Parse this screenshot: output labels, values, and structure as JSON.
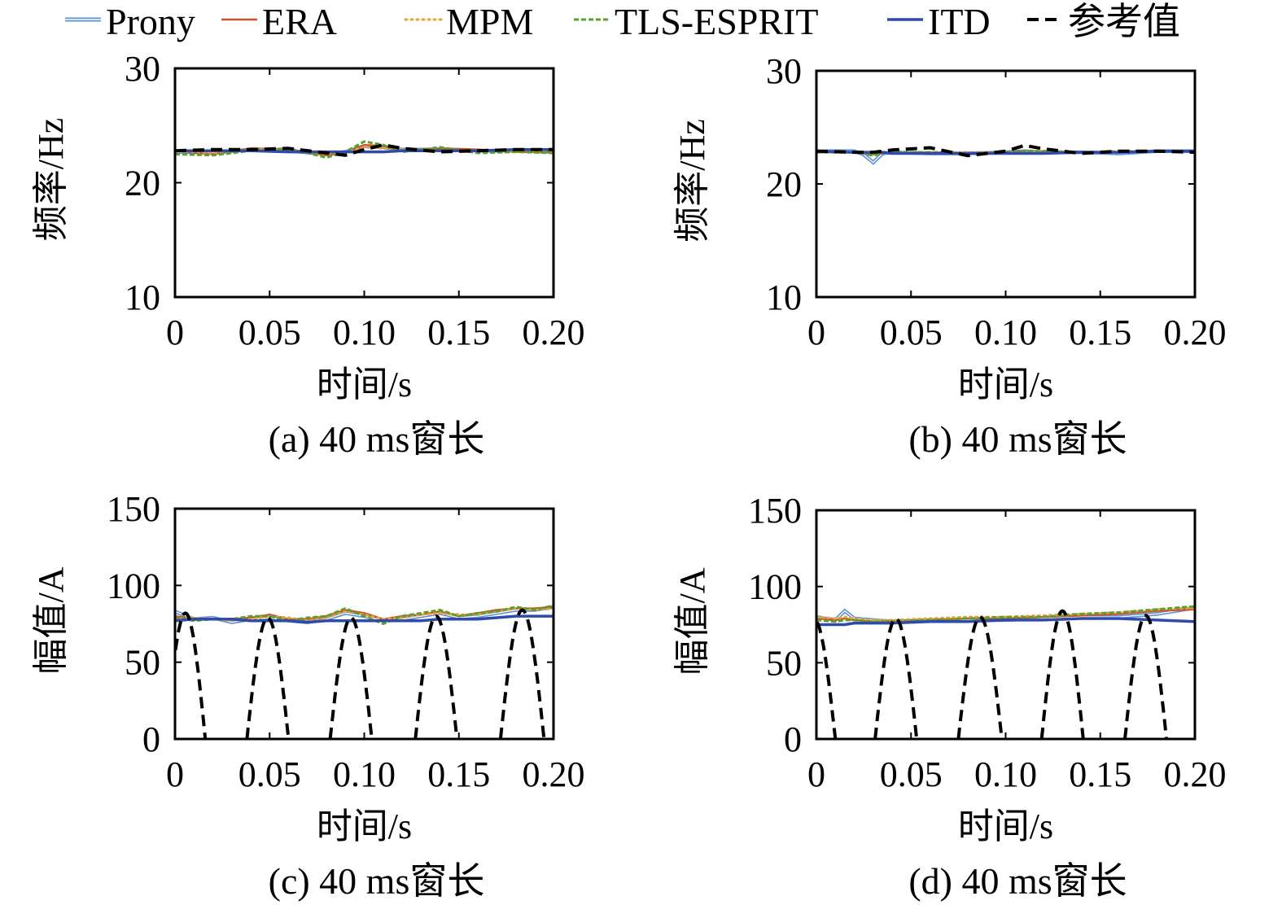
{
  "legend": [
    {
      "name": "Prony",
      "color": "#5b8fd6",
      "style": "double"
    },
    {
      "name": "ERA",
      "color": "#d2502a",
      "style": "solid"
    },
    {
      "name": "MPM",
      "color": "#e3a33b",
      "style": "dotted"
    },
    {
      "name": "TLS-ESPRIT",
      "color": "#5aa02c",
      "style": "dashed"
    },
    {
      "name": "ITD",
      "color": "#2e4bab",
      "style": "solid-thick"
    },
    {
      "name": "参考值",
      "color": "#000000",
      "style": "dashed-thick"
    }
  ],
  "chart_data": [
    {
      "type": "line",
      "caption": "(a) 40 ms窗长",
      "xlabel": "时间/s",
      "ylabel": "频率/Hz",
      "xlim": [
        0,
        0.2
      ],
      "ylim": [
        10,
        30
      ],
      "xticks": [
        "0",
        "0.05",
        "0.10",
        "0.15",
        "0.20"
      ],
      "yticks": [
        "10",
        "20",
        "30"
      ],
      "x": [
        0,
        0.02,
        0.04,
        0.06,
        0.08,
        0.09,
        0.1,
        0.11,
        0.12,
        0.14,
        0.16,
        0.18,
        0.2
      ],
      "series": [
        {
          "name": "Prony",
          "values": [
            22.7,
            22.6,
            22.9,
            22.8,
            22.5,
            22.7,
            23.2,
            23.1,
            22.9,
            22.9,
            22.8,
            22.8,
            22.7
          ]
        },
        {
          "name": "ERA",
          "values": [
            22.8,
            22.5,
            23.0,
            22.9,
            22.4,
            22.6,
            23.3,
            23.2,
            22.8,
            23.0,
            22.9,
            22.7,
            22.7
          ]
        },
        {
          "name": "MPM",
          "values": [
            22.8,
            22.6,
            22.9,
            22.9,
            22.5,
            22.7,
            23.1,
            23.0,
            22.9,
            22.8,
            22.8,
            22.8,
            22.8
          ]
        },
        {
          "name": "TLS-ESPRIT",
          "values": [
            22.5,
            22.4,
            22.8,
            23.0,
            22.2,
            22.7,
            23.6,
            23.3,
            22.7,
            23.1,
            22.6,
            22.7,
            22.6
          ]
        },
        {
          "name": "ITD",
          "values": [
            22.8,
            22.8,
            22.8,
            22.7,
            22.7,
            22.7,
            22.7,
            22.7,
            22.8,
            22.8,
            22.8,
            22.9,
            22.9
          ]
        },
        {
          "name": "参考值",
          "values": [
            22.8,
            22.9,
            22.9,
            23.0,
            22.6,
            22.4,
            22.9,
            23.3,
            23.0,
            22.7,
            22.8,
            22.9,
            22.9
          ]
        }
      ]
    },
    {
      "type": "line",
      "caption": "(b) 40 ms窗长",
      "xlabel": "时间/s",
      "ylabel": "频率/Hz",
      "xlim": [
        0,
        0.2
      ],
      "ylim": [
        10,
        30
      ],
      "xticks": [
        "0",
        "0.05",
        "0.10",
        "0.15",
        "0.20"
      ],
      "yticks": [
        "10",
        "20",
        "30"
      ],
      "x": [
        0,
        0.02,
        0.025,
        0.03,
        0.035,
        0.04,
        0.06,
        0.08,
        0.1,
        0.11,
        0.12,
        0.14,
        0.16,
        0.18,
        0.2
      ],
      "series": [
        {
          "name": "Prony",
          "values": [
            22.9,
            22.9,
            22.6,
            21.9,
            22.7,
            22.8,
            22.7,
            22.7,
            22.8,
            22.9,
            22.8,
            22.8,
            22.7,
            22.9,
            22.9
          ]
        },
        {
          "name": "ERA",
          "values": [
            22.8,
            22.8,
            22.7,
            22.6,
            22.7,
            22.8,
            22.8,
            22.7,
            22.8,
            22.9,
            22.9,
            22.8,
            22.8,
            22.9,
            22.9
          ]
        },
        {
          "name": "MPM",
          "values": [
            22.8,
            22.8,
            22.8,
            22.7,
            22.8,
            22.8,
            22.8,
            22.8,
            22.8,
            22.8,
            22.9,
            22.8,
            22.9,
            22.9,
            22.9
          ]
        },
        {
          "name": "TLS-ESPRIT",
          "values": [
            22.8,
            22.8,
            22.7,
            22.5,
            22.7,
            22.8,
            22.8,
            22.7,
            22.8,
            22.9,
            22.9,
            22.8,
            22.8,
            22.9,
            22.9
          ]
        },
        {
          "name": "ITD",
          "values": [
            22.9,
            22.8,
            22.8,
            22.8,
            22.8,
            22.7,
            22.7,
            22.7,
            22.7,
            22.7,
            22.7,
            22.8,
            22.8,
            22.9,
            22.9
          ]
        },
        {
          "name": "参考值",
          "values": [
            22.9,
            22.8,
            22.8,
            22.8,
            22.9,
            23.0,
            23.2,
            22.5,
            22.9,
            23.4,
            23.1,
            22.7,
            22.9,
            22.9,
            22.8
          ]
        }
      ]
    },
    {
      "type": "line",
      "caption": "(c) 40 ms窗长",
      "xlabel": "时间/s",
      "ylabel": "幅值/A",
      "xlim": [
        0,
        0.2
      ],
      "ylim": [
        0,
        150
      ],
      "xticks": [
        "0",
        "0.05",
        "0.10",
        "0.15",
        "0.20"
      ],
      "yticks": [
        "0",
        "50",
        "100",
        "150"
      ],
      "x": [
        0,
        0.01,
        0.02,
        0.03,
        0.04,
        0.05,
        0.06,
        0.07,
        0.08,
        0.09,
        0.1,
        0.11,
        0.12,
        0.13,
        0.14,
        0.15,
        0.16,
        0.17,
        0.18,
        0.19,
        0.2
      ],
      "series": [
        {
          "name": "Prony",
          "values": [
            83,
            78,
            79,
            76,
            78,
            79,
            77,
            76,
            78,
            82,
            80,
            77,
            78,
            80,
            82,
            79,
            80,
            82,
            84,
            84,
            86
          ]
        },
        {
          "name": "ERA",
          "values": [
            80,
            78,
            78,
            78,
            79,
            81,
            78,
            78,
            80,
            84,
            82,
            78,
            80,
            81,
            83,
            80,
            82,
            84,
            85,
            85,
            86
          ]
        },
        {
          "name": "MPM",
          "values": [
            78,
            79,
            78,
            77,
            78,
            80,
            79,
            77,
            79,
            83,
            81,
            78,
            79,
            81,
            82,
            81,
            81,
            83,
            85,
            84,
            85
          ]
        },
        {
          "name": "TLS-ESPRIT",
          "values": [
            79,
            77,
            78,
            78,
            80,
            80,
            77,
            79,
            80,
            85,
            80,
            75,
            80,
            82,
            84,
            80,
            82,
            83,
            86,
            84,
            87
          ]
        },
        {
          "name": "ITD",
          "values": [
            77,
            78,
            78,
            78,
            77,
            77,
            77,
            76,
            77,
            77,
            77,
            77,
            77,
            77,
            78,
            78,
            78,
            79,
            80,
            80,
            80
          ]
        }
      ],
      "reference": {
        "name": "参考值",
        "arches": [
          {
            "start": -0.005,
            "end": 0.016,
            "peak": 82
          },
          {
            "start": 0.038,
            "end": 0.06,
            "peak": 79
          },
          {
            "start": 0.082,
            "end": 0.104,
            "peak": 79
          },
          {
            "start": 0.127,
            "end": 0.149,
            "peak": 80
          },
          {
            "start": 0.172,
            "end": 0.195,
            "peak": 84
          }
        ]
      }
    },
    {
      "type": "line",
      "caption": "(d) 40 ms窗长",
      "xlabel": "时间/s",
      "ylabel": "幅值/A",
      "xlim": [
        0,
        0.2
      ],
      "ylim": [
        0,
        150
      ],
      "xticks": [
        "0",
        "0.05",
        "0.10",
        "0.15",
        "0.20"
      ],
      "yticks": [
        "0",
        "50",
        "100",
        "150"
      ],
      "x": [
        0,
        0.01,
        0.015,
        0.02,
        0.03,
        0.04,
        0.06,
        0.08,
        0.1,
        0.12,
        0.14,
        0.16,
        0.18,
        0.2
      ],
      "series": [
        {
          "name": "Prony",
          "values": [
            80,
            78,
            84,
            79,
            78,
            77,
            78,
            78,
            78,
            79,
            80,
            80,
            82,
            86
          ]
        },
        {
          "name": "ERA",
          "values": [
            79,
            78,
            79,
            78,
            77,
            77,
            78,
            79,
            79,
            80,
            81,
            82,
            84,
            85
          ]
        },
        {
          "name": "MPM",
          "values": [
            80,
            79,
            80,
            79,
            78,
            78,
            79,
            80,
            80,
            81,
            82,
            83,
            85,
            86
          ]
        },
        {
          "name": "TLS-ESPRIT",
          "values": [
            78,
            77,
            78,
            78,
            77,
            77,
            78,
            79,
            80,
            80,
            82,
            83,
            85,
            87
          ]
        },
        {
          "name": "ITD",
          "values": [
            75,
            75,
            75,
            76,
            76,
            76,
            77,
            77,
            78,
            78,
            79,
            79,
            78,
            77
          ]
        }
      ],
      "reference": {
        "name": "参考值",
        "arches": [
          {
            "start": -0.012,
            "end": 0.01,
            "peak": 78
          },
          {
            "start": 0.031,
            "end": 0.053,
            "peak": 79
          },
          {
            "start": 0.075,
            "end": 0.098,
            "peak": 80
          },
          {
            "start": 0.119,
            "end": 0.141,
            "peak": 84
          },
          {
            "start": 0.163,
            "end": 0.185,
            "peak": 81
          }
        ]
      }
    }
  ]
}
